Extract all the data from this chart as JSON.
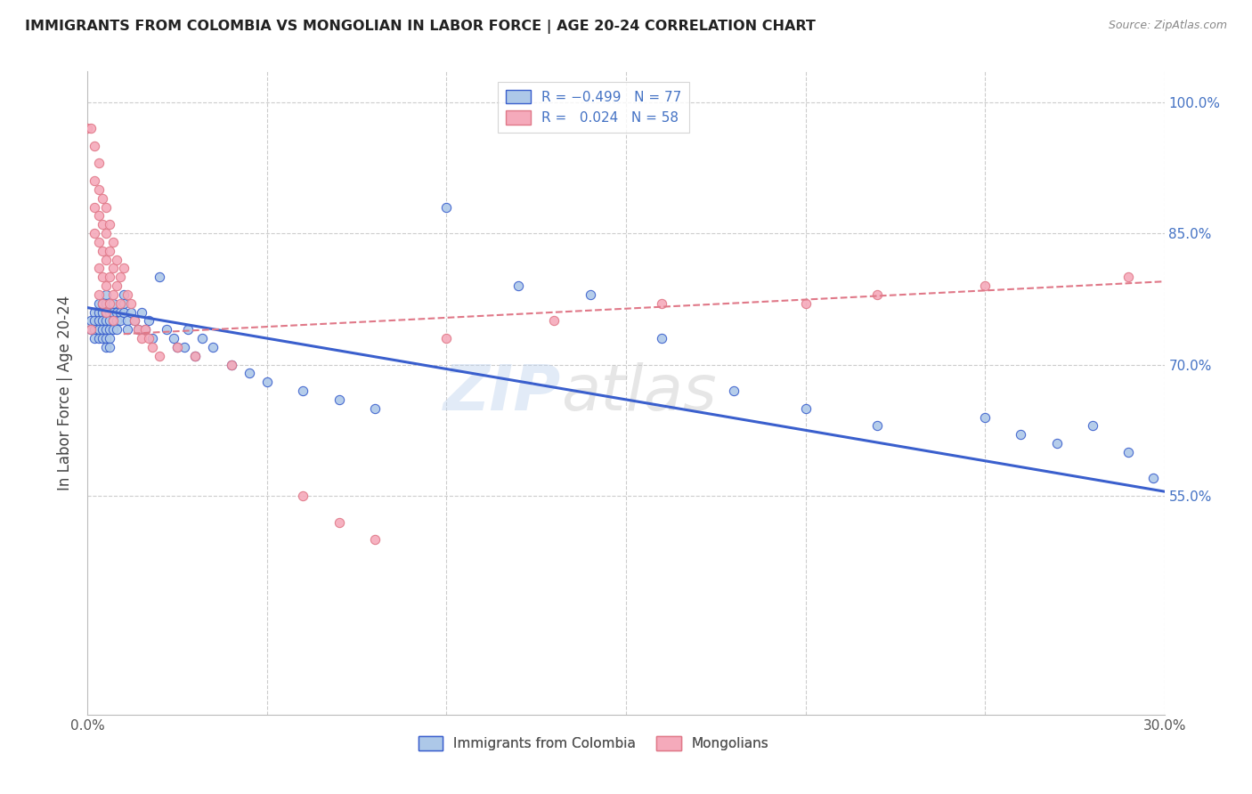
{
  "title": "IMMIGRANTS FROM COLOMBIA VS MONGOLIAN IN LABOR FORCE | AGE 20-24 CORRELATION CHART",
  "source": "Source: ZipAtlas.com",
  "ylabel": "In Labor Force | Age 20-24",
  "xlim": [
    0.0,
    0.3
  ],
  "ylim": [
    0.3,
    1.035
  ],
  "colombia_R": -0.499,
  "colombia_N": 77,
  "mongolia_R": 0.024,
  "mongolia_N": 58,
  "colombia_color": "#adc8e8",
  "mongolia_color": "#f5aabb",
  "colombia_line_color": "#3a5fcd",
  "mongolia_line_color": "#e07888",
  "mongolia_line_dashed": true,
  "watermark": "ZIPatlas",
  "ytick_vals": [
    0.55,
    0.7,
    0.85,
    1.0
  ],
  "ytick_labels": [
    "55.0%",
    "70.0%",
    "85.0%",
    "100.0%"
  ],
  "colombia_x": [
    0.001,
    0.001,
    0.002,
    0.002,
    0.002,
    0.002,
    0.003,
    0.003,
    0.003,
    0.003,
    0.003,
    0.004,
    0.004,
    0.004,
    0.004,
    0.004,
    0.005,
    0.005,
    0.005,
    0.005,
    0.005,
    0.005,
    0.005,
    0.006,
    0.006,
    0.006,
    0.006,
    0.006,
    0.007,
    0.007,
    0.007,
    0.007,
    0.008,
    0.008,
    0.008,
    0.009,
    0.009,
    0.01,
    0.01,
    0.01,
    0.011,
    0.011,
    0.012,
    0.013,
    0.014,
    0.015,
    0.016,
    0.017,
    0.018,
    0.02,
    0.022,
    0.024,
    0.025,
    0.027,
    0.028,
    0.03,
    0.032,
    0.035,
    0.04,
    0.045,
    0.05,
    0.06,
    0.07,
    0.08,
    0.1,
    0.12,
    0.14,
    0.16,
    0.18,
    0.2,
    0.22,
    0.25,
    0.26,
    0.27,
    0.28,
    0.29,
    0.297
  ],
  "colombia_y": [
    0.75,
    0.74,
    0.76,
    0.75,
    0.74,
    0.73,
    0.77,
    0.76,
    0.75,
    0.74,
    0.73,
    0.77,
    0.76,
    0.75,
    0.74,
    0.73,
    0.78,
    0.77,
    0.76,
    0.75,
    0.74,
    0.73,
    0.72,
    0.76,
    0.75,
    0.74,
    0.73,
    0.72,
    0.77,
    0.76,
    0.75,
    0.74,
    0.76,
    0.75,
    0.74,
    0.76,
    0.75,
    0.78,
    0.77,
    0.76,
    0.75,
    0.74,
    0.76,
    0.75,
    0.74,
    0.76,
    0.74,
    0.75,
    0.73,
    0.8,
    0.74,
    0.73,
    0.72,
    0.72,
    0.74,
    0.71,
    0.73,
    0.72,
    0.7,
    0.69,
    0.68,
    0.67,
    0.66,
    0.65,
    0.88,
    0.79,
    0.78,
    0.73,
    0.67,
    0.65,
    0.63,
    0.64,
    0.62,
    0.61,
    0.63,
    0.6,
    0.57
  ],
  "mongolia_x": [
    0.0,
    0.001,
    0.001,
    0.002,
    0.002,
    0.002,
    0.002,
    0.003,
    0.003,
    0.003,
    0.003,
    0.003,
    0.003,
    0.004,
    0.004,
    0.004,
    0.004,
    0.004,
    0.005,
    0.005,
    0.005,
    0.005,
    0.005,
    0.006,
    0.006,
    0.006,
    0.006,
    0.007,
    0.007,
    0.007,
    0.007,
    0.008,
    0.008,
    0.009,
    0.009,
    0.01,
    0.011,
    0.012,
    0.013,
    0.014,
    0.015,
    0.016,
    0.017,
    0.018,
    0.02,
    0.025,
    0.03,
    0.04,
    0.06,
    0.07,
    0.08,
    0.1,
    0.13,
    0.16,
    0.2,
    0.22,
    0.25,
    0.29
  ],
  "mongolia_y": [
    0.97,
    0.97,
    0.74,
    0.95,
    0.91,
    0.88,
    0.85,
    0.9,
    0.87,
    0.84,
    0.81,
    0.78,
    0.93,
    0.89,
    0.86,
    0.83,
    0.8,
    0.77,
    0.88,
    0.85,
    0.82,
    0.79,
    0.76,
    0.86,
    0.83,
    0.8,
    0.77,
    0.84,
    0.81,
    0.78,
    0.75,
    0.82,
    0.79,
    0.8,
    0.77,
    0.81,
    0.78,
    0.77,
    0.75,
    0.74,
    0.73,
    0.74,
    0.73,
    0.72,
    0.71,
    0.72,
    0.71,
    0.7,
    0.55,
    0.52,
    0.5,
    0.73,
    0.75,
    0.77,
    0.77,
    0.78,
    0.79,
    0.8
  ]
}
